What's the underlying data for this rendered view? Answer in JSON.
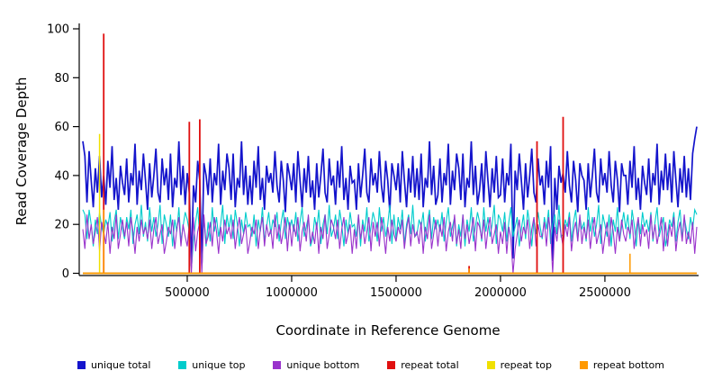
{
  "chart_data": {
    "type": "line",
    "title": "",
    "xlabel": "Coordinate in Reference Genome",
    "ylabel": "Read Coverage Depth",
    "xlim": [
      0,
      2940000
    ],
    "ylim": [
      0,
      100
    ],
    "x_ticks": [
      500000,
      1000000,
      1500000,
      2000000,
      2500000
    ],
    "x_tick_labels": [
      "500000",
      "1000000",
      "1500000",
      "2000000",
      "2500000"
    ],
    "y_ticks": [
      0,
      20,
      40,
      60,
      80,
      100
    ],
    "y_tick_labels": [
      "0",
      "20",
      "40",
      "60",
      "80",
      "100"
    ],
    "grid": false,
    "legend_position": "bottom",
    "x_start": 0,
    "x_step": 10000,
    "series": [
      {
        "name": "unique total",
        "color": "#1414CC",
        "width": 1.7,
        "values": [
          54,
          48,
          29,
          50,
          38,
          27,
          43,
          33,
          48,
          31,
          40,
          28,
          46,
          35,
          52,
          30,
          39,
          26,
          44,
          37,
          32,
          47,
          29,
          41,
          36,
          53,
          28,
          42,
          34,
          49,
          38,
          26,
          45,
          31,
          40,
          51,
          33,
          29,
          47,
          36,
          43,
          30,
          49,
          27,
          39,
          35,
          54,
          32,
          44,
          28,
          41,
          33,
          3,
          36,
          29,
          46,
          38,
          4,
          45,
          40,
          32,
          47,
          29,
          41,
          36,
          53,
          28,
          42,
          34,
          49,
          43,
          30,
          49,
          27,
          39,
          35,
          54,
          32,
          44,
          28,
          40,
          28,
          46,
          35,
          52,
          30,
          39,
          26,
          44,
          37,
          41,
          33,
          50,
          36,
          29,
          46,
          38,
          25,
          45,
          40,
          34,
          45,
          29,
          50,
          38,
          27,
          43,
          33,
          48,
          31,
          38,
          26,
          45,
          31,
          40,
          51,
          33,
          29,
          47,
          36,
          40,
          28,
          46,
          35,
          52,
          30,
          39,
          26,
          44,
          37,
          38,
          26,
          45,
          31,
          40,
          51,
          33,
          29,
          47,
          36,
          41,
          33,
          50,
          36,
          29,
          46,
          38,
          25,
          45,
          40,
          34,
          45,
          29,
          50,
          38,
          27,
          43,
          33,
          48,
          31,
          43,
          30,
          49,
          27,
          39,
          35,
          54,
          32,
          44,
          28,
          32,
          47,
          29,
          41,
          36,
          53,
          28,
          42,
          34,
          49,
          43,
          30,
          49,
          27,
          39,
          35,
          54,
          32,
          44,
          28,
          34,
          45,
          29,
          50,
          38,
          27,
          43,
          33,
          48,
          31,
          32,
          47,
          29,
          41,
          36,
          53,
          6,
          42,
          34,
          49,
          38,
          26,
          45,
          31,
          40,
          51,
          33,
          29,
          47,
          36,
          40,
          28,
          46,
          35,
          52,
          5,
          39,
          26,
          44,
          37,
          41,
          33,
          50,
          36,
          29,
          46,
          38,
          25,
          45,
          40,
          38,
          26,
          45,
          31,
          40,
          51,
          33,
          29,
          47,
          36,
          41,
          33,
          50,
          36,
          29,
          46,
          38,
          25,
          45,
          40,
          40,
          28,
          46,
          35,
          52,
          30,
          39,
          26,
          44,
          37,
          32,
          47,
          29,
          41,
          36,
          53,
          28,
          42,
          34,
          49,
          34,
          45,
          29,
          50,
          38,
          27,
          43,
          33,
          48,
          31,
          43,
          30,
          49,
          55,
          60
        ]
      },
      {
        "name": "unique top",
        "color": "#00CCCC",
        "width": 1.1,
        "values": [
          26,
          24,
          14,
          26,
          20,
          11,
          22,
          16,
          25,
          19,
          16,
          22,
          19,
          25,
          13,
          21,
          26,
          14,
          23,
          18,
          14,
          23,
          18,
          26,
          12,
          20,
          24,
          16,
          28,
          15,
          21,
          13,
          27,
          17,
          23,
          15,
          20,
          28,
          12,
          24,
          20,
          15,
          24,
          11,
          22,
          17,
          27,
          13,
          19,
          25,
          22,
          17,
          2,
          13,
          21,
          27,
          15,
          2,
          23,
          11,
          21,
          13,
          27,
          17,
          23,
          15,
          20,
          28,
          12,
          24,
          18,
          24,
          14,
          26,
          20,
          11,
          22,
          16,
          25,
          19,
          20,
          15,
          24,
          11,
          22,
          17,
          27,
          13,
          19,
          25,
          16,
          22,
          19,
          25,
          13,
          21,
          26,
          14,
          23,
          18,
          22,
          17,
          25,
          13,
          21,
          27,
          15,
          19,
          23,
          11,
          14,
          23,
          18,
          26,
          12,
          20,
          24,
          16,
          28,
          15,
          18,
          24,
          14,
          26,
          20,
          11,
          22,
          16,
          25,
          19,
          20,
          15,
          24,
          11,
          22,
          17,
          27,
          13,
          19,
          25,
          21,
          13,
          27,
          17,
          23,
          15,
          20,
          28,
          12,
          24,
          14,
          23,
          18,
          26,
          12,
          20,
          24,
          16,
          28,
          15,
          16,
          22,
          19,
          25,
          13,
          21,
          26,
          14,
          23,
          18,
          22,
          17,
          25,
          13,
          21,
          27,
          15,
          19,
          23,
          11,
          20,
          15,
          24,
          11,
          22,
          17,
          27,
          13,
          19,
          25,
          21,
          13,
          27,
          17,
          23,
          15,
          20,
          28,
          12,
          24,
          22,
          17,
          25,
          13,
          21,
          27,
          15,
          19,
          23,
          11,
          18,
          24,
          14,
          26,
          20,
          11,
          22,
          16,
          25,
          19,
          14,
          23,
          18,
          26,
          12,
          20,
          24,
          16,
          28,
          15,
          16,
          22,
          19,
          25,
          13,
          21,
          26,
          14,
          23,
          18,
          21,
          13,
          27,
          17,
          23,
          15,
          20,
          28,
          12,
          24,
          20,
          15,
          24,
          11,
          22,
          17,
          27,
          13,
          19,
          25,
          18,
          24,
          14,
          26,
          20,
          11,
          22,
          16,
          25,
          19,
          22,
          17,
          25,
          13,
          21,
          27,
          15,
          19,
          23,
          11,
          16,
          22,
          19,
          25,
          13,
          21,
          26,
          14,
          23,
          18,
          14,
          23,
          18,
          26,
          24
        ]
      },
      {
        "name": "unique bottom",
        "color": "#9933CC",
        "width": 1.1,
        "values": [
          18,
          10,
          24,
          14,
          20,
          12,
          17,
          23,
          9,
          21,
          17,
          12,
          21,
          8,
          19,
          14,
          24,
          10,
          16,
          22,
          15,
          21,
          11,
          23,
          17,
          8,
          19,
          13,
          22,
          16,
          19,
          14,
          22,
          10,
          18,
          23,
          12,
          16,
          20,
          8,
          13,
          19,
          16,
          22,
          10,
          18,
          23,
          11,
          20,
          15,
          11,
          20,
          0,
          23,
          9,
          17,
          21,
          0,
          24,
          12,
          15,
          21,
          11,
          23,
          17,
          8,
          19,
          13,
          22,
          16,
          19,
          14,
          22,
          10,
          18,
          23,
          12,
          16,
          20,
          8,
          13,
          19,
          16,
          22,
          10,
          18,
          23,
          11,
          20,
          15,
          18,
          10,
          24,
          14,
          20,
          12,
          17,
          23,
          9,
          21,
          11,
          20,
          15,
          23,
          9,
          17,
          21,
          13,
          24,
          12,
          17,
          12,
          21,
          8,
          19,
          14,
          24,
          10,
          16,
          22,
          19,
          14,
          22,
          10,
          18,
          23,
          12,
          16,
          20,
          8,
          18,
          10,
          24,
          14,
          20,
          12,
          17,
          23,
          9,
          21,
          15,
          21,
          11,
          23,
          17,
          8,
          19,
          13,
          22,
          16,
          13,
          19,
          16,
          22,
          10,
          18,
          23,
          11,
          20,
          15,
          17,
          12,
          21,
          8,
          19,
          14,
          24,
          10,
          16,
          22,
          11,
          20,
          15,
          23,
          9,
          17,
          21,
          13,
          24,
          12,
          18,
          10,
          24,
          14,
          20,
          12,
          17,
          23,
          9,
          21,
          19,
          14,
          22,
          10,
          18,
          23,
          12,
          16,
          20,
          8,
          17,
          12,
          21,
          8,
          19,
          14,
          0,
          10,
          16,
          22,
          13,
          19,
          16,
          22,
          10,
          18,
          23,
          11,
          20,
          15,
          15,
          21,
          11,
          23,
          17,
          0,
          19,
          13,
          22,
          16,
          11,
          20,
          15,
          23,
          9,
          17,
          21,
          13,
          24,
          12,
          19,
          14,
          22,
          10,
          18,
          23,
          12,
          16,
          20,
          8,
          15,
          21,
          11,
          23,
          17,
          8,
          19,
          13,
          22,
          16,
          13,
          19,
          16,
          22,
          10,
          18,
          23,
          11,
          20,
          15,
          18,
          10,
          24,
          14,
          20,
          12,
          17,
          23,
          9,
          21,
          11,
          20,
          15,
          23,
          9,
          17,
          21,
          13,
          24,
          12,
          17,
          12,
          21,
          8,
          19
        ]
      },
      {
        "name": "repeat total",
        "color": "#E01010",
        "width": 1.8,
        "baseline": 0,
        "spikes": [
          {
            "x": 100000,
            "v": 98
          },
          {
            "x": 510000,
            "v": 62
          },
          {
            "x": 560000,
            "v": 63
          },
          {
            "x": 1850000,
            "v": 3
          },
          {
            "x": 2175000,
            "v": 54
          },
          {
            "x": 2300000,
            "v": 64
          }
        ]
      },
      {
        "name": "repeat top",
        "color": "#F0E000",
        "width": 1.5,
        "baseline": 0,
        "spikes": [
          {
            "x": 80000,
            "v": 57
          }
        ]
      },
      {
        "name": "repeat bottom",
        "color": "#FF9900",
        "width": 1.5,
        "baseline": 0,
        "spikes": [
          {
            "x": 100000,
            "v": 26
          },
          {
            "x": 1850000,
            "v": 2
          },
          {
            "x": 2620000,
            "v": 8
          }
        ]
      }
    ]
  }
}
